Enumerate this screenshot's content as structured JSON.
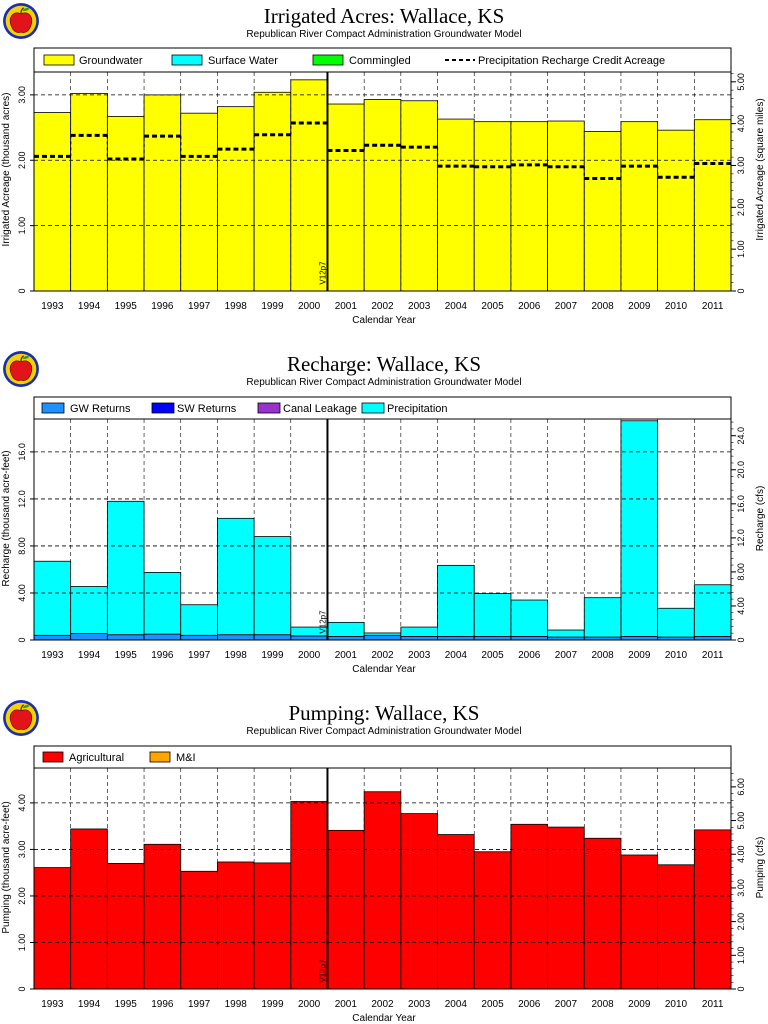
{
  "colors": {
    "groundwater": "#ffff00",
    "surface_water": "#00ffff",
    "commingled": "#00ff00",
    "precipitation": "#00ffff",
    "gw_returns": "#1e90ff",
    "sw_returns": "#0000ff",
    "canal_leakage": "#9932cc",
    "agricultural": "#ff0000",
    "mi": "#ffa500"
  },
  "icons": [
    "apple-logo-icon",
    "apple-logo-icon",
    "apple-logo-icon"
  ],
  "chart_data": [
    {
      "type": "bar",
      "title": "Irrigated Acres: Wallace, KS",
      "subtitle": "Republican River Compact Administration Groundwater Model",
      "xlabel": "Calendar Year",
      "ylabel": "Irrigated Acreage (thousand acres)",
      "y2label": "Irrigated Acreage (square miles)",
      "ylim": [
        0,
        3.35
      ],
      "yticks": [
        0,
        1.0,
        2.0,
        3.0
      ],
      "ytick_labels": [
        "0",
        "1.00",
        "2.00",
        "3.00"
      ],
      "y2ticks": [
        0,
        1.0,
        2.0,
        3.0,
        4.0,
        5.0
      ],
      "y2tick_labels": [
        "0",
        "1.00",
        "2.00",
        "3.00",
        "4.00",
        "5.00"
      ],
      "y2_factor": 1.5625,
      "grid": true,
      "marker_label": "V12p7",
      "marker_after": "2000",
      "categories": [
        "1993",
        "1994",
        "1995",
        "1996",
        "1997",
        "1998",
        "1999",
        "2000",
        "2001",
        "2002",
        "2003",
        "2004",
        "2005",
        "2006",
        "2007",
        "2008",
        "2009",
        "2010",
        "2011"
      ],
      "series": [
        {
          "name": "Groundwater",
          "kind": "bar",
          "color_key": "groundwater",
          "values": [
            2.73,
            3.02,
            2.67,
            3.0,
            2.72,
            2.82,
            3.04,
            3.23,
            2.86,
            2.93,
            2.91,
            2.63,
            2.59,
            2.59,
            2.6,
            2.44,
            2.59,
            2.46,
            2.62
          ]
        },
        {
          "name": "Surface Water",
          "kind": "bar",
          "color_key": "surface_water",
          "values": [
            0,
            0,
            0,
            0,
            0,
            0,
            0,
            0,
            0,
            0,
            0,
            0,
            0,
            0,
            0,
            0,
            0,
            0,
            0
          ]
        },
        {
          "name": "Commingled",
          "kind": "bar",
          "color_key": "commingled",
          "values": [
            0,
            0,
            0,
            0,
            0,
            0,
            0,
            0,
            0,
            0,
            0,
            0,
            0,
            0,
            0,
            0,
            0,
            0,
            0
          ]
        },
        {
          "name": "Precipitation Recharge Credit Acreage",
          "kind": "dashed-step",
          "values": [
            2.06,
            2.38,
            2.02,
            2.37,
            2.06,
            2.17,
            2.39,
            2.57,
            2.15,
            2.23,
            2.2,
            1.91,
            1.9,
            1.93,
            1.9,
            1.72,
            1.91,
            1.74,
            1.95
          ]
        }
      ]
    },
    {
      "type": "bar",
      "title": "Recharge: Wallace, KS",
      "subtitle": "Republican River Compact Administration Groundwater Model",
      "xlabel": "Calendar Year",
      "ylabel": "Recharge (thousand acre-feet)",
      "y2label": "Recharge (cfs)",
      "ylim": [
        0,
        18.8
      ],
      "yticks": [
        0,
        4.0,
        8.0,
        12.0,
        16.0
      ],
      "ytick_labels": [
        "0",
        "4.00",
        "8.00",
        "12.0",
        "16.0"
      ],
      "y2ticks": [
        0,
        4.0,
        8.0,
        12.0,
        16.0,
        20.0,
        24.0
      ],
      "y2tick_labels": [
        "0",
        "4.00",
        "8.00",
        "12.0",
        "16.0",
        "20.0",
        "24.0"
      ],
      "y2_factor": 1.381,
      "grid": true,
      "marker_label": "V12p7",
      "marker_after": "2000",
      "categories": [
        "1993",
        "1994",
        "1995",
        "1996",
        "1997",
        "1998",
        "1999",
        "2000",
        "2001",
        "2002",
        "2003",
        "2004",
        "2005",
        "2006",
        "2007",
        "2008",
        "2009",
        "2010",
        "2011"
      ],
      "series": [
        {
          "name": "GW Returns",
          "kind": "bar",
          "color_key": "gw_returns",
          "values": [
            0.4,
            0.55,
            0.45,
            0.5,
            0.4,
            0.45,
            0.45,
            0.35,
            0.3,
            0.4,
            0.3,
            0.3,
            0.3,
            0.3,
            0.25,
            0.25,
            0.3,
            0.25,
            0.3
          ]
        },
        {
          "name": "SW Returns",
          "kind": "bar",
          "color_key": "sw_returns",
          "values": [
            0,
            0,
            0,
            0,
            0,
            0,
            0,
            0,
            0,
            0,
            0,
            0,
            0,
            0,
            0,
            0,
            0,
            0,
            0
          ]
        },
        {
          "name": "Canal Leakage",
          "kind": "bar",
          "color_key": "canal_leakage",
          "values": [
            0,
            0,
            0,
            0,
            0,
            0,
            0,
            0,
            0,
            0,
            0,
            0,
            0,
            0,
            0,
            0,
            0,
            0,
            0
          ]
        },
        {
          "name": "Precipitation",
          "kind": "bar",
          "color_key": "precipitation",
          "values": [
            6.3,
            4.0,
            11.35,
            5.25,
            2.6,
            9.9,
            8.35,
            0.75,
            1.2,
            0.2,
            0.8,
            6.05,
            3.65,
            3.1,
            0.6,
            3.35,
            18.35,
            2.45,
            4.4
          ]
        }
      ]
    },
    {
      "type": "bar",
      "title": "Pumping: Wallace, KS",
      "subtitle": "Republican River Compact Administration Groundwater Model",
      "xlabel": "Calendar Year",
      "ylabel": "Pumping (thousand acre-feet)",
      "y2label": "Pumping (cfs)",
      "ylim": [
        0,
        4.75
      ],
      "yticks": [
        0,
        1.0,
        2.0,
        3.0,
        4.0
      ],
      "ytick_labels": [
        "0",
        "1.00",
        "2.00",
        "3.00",
        "4.00"
      ],
      "y2ticks": [
        0,
        1.0,
        2.0,
        3.0,
        4.0,
        5.0,
        6.0
      ],
      "y2tick_labels": [
        "0",
        "1.00",
        "2.00",
        "3.00",
        "4.00",
        "5.00",
        "6.00"
      ],
      "y2_factor": 1.381,
      "grid": true,
      "marker_label": "V12p7",
      "marker_after": "2000",
      "categories": [
        "1993",
        "1994",
        "1995",
        "1996",
        "1997",
        "1998",
        "1999",
        "2000",
        "2001",
        "2002",
        "2003",
        "2004",
        "2005",
        "2006",
        "2007",
        "2008",
        "2009",
        "2010",
        "2011"
      ],
      "series": [
        {
          "name": "Agricultural",
          "kind": "bar",
          "color_key": "agricultural",
          "values": [
            2.61,
            3.44,
            2.7,
            3.11,
            2.53,
            2.73,
            2.71,
            4.03,
            3.41,
            4.24,
            3.77,
            3.32,
            2.95,
            3.54,
            3.48,
            3.24,
            2.88,
            2.67,
            3.42
          ]
        },
        {
          "name": "M&I",
          "kind": "bar",
          "color_key": "mi",
          "values": [
            0,
            0,
            0,
            0,
            0,
            0,
            0,
            0,
            0,
            0,
            0,
            0,
            0,
            0,
            0,
            0,
            0,
            0,
            0
          ]
        }
      ]
    }
  ]
}
